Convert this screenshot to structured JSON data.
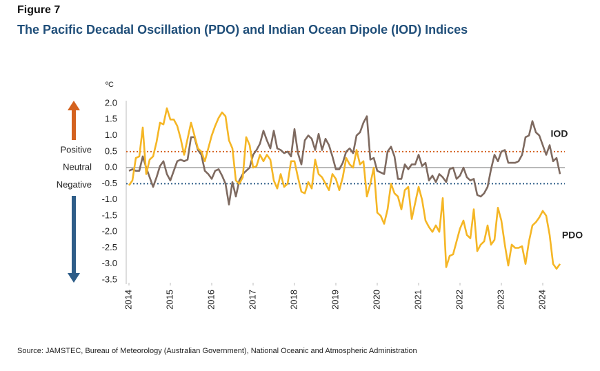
{
  "chart_data": {
    "type": "line",
    "figure_label": "Figure 7",
    "title": "The Pacific Decadal Oscillation (PDO) and Indian Ocean Dipole (IOD) Indices",
    "y_unit": "ºC",
    "source": "Source: JAMSTEC, Bureau of Meteorology (Australian Government), National Oceanic and Atmospheric Administration",
    "x": [
      2014,
      2014.083,
      2014.167,
      2014.25,
      2014.333,
      2014.417,
      2014.5,
      2014.583,
      2014.667,
      2014.75,
      2014.833,
      2014.917,
      2015,
      2015.083,
      2015.167,
      2015.25,
      2015.333,
      2015.417,
      2015.5,
      2015.583,
      2015.667,
      2015.75,
      2015.833,
      2015.917,
      2016,
      2016.083,
      2016.167,
      2016.25,
      2016.333,
      2016.417,
      2016.5,
      2016.583,
      2016.667,
      2016.75,
      2016.833,
      2016.917,
      2017,
      2017.083,
      2017.167,
      2017.25,
      2017.333,
      2017.417,
      2017.5,
      2017.583,
      2017.667,
      2017.75,
      2017.833,
      2017.917,
      2018,
      2018.083,
      2018.167,
      2018.25,
      2018.333,
      2018.417,
      2018.5,
      2018.583,
      2018.667,
      2018.75,
      2018.833,
      2018.917,
      2019,
      2019.083,
      2019.167,
      2019.25,
      2019.333,
      2019.417,
      2019.5,
      2019.583,
      2019.667,
      2019.75,
      2019.833,
      2019.917,
      2020,
      2020.083,
      2020.167,
      2020.25,
      2020.333,
      2020.417,
      2020.5,
      2020.583,
      2020.667,
      2020.75,
      2020.833,
      2020.917,
      2021,
      2021.083,
      2021.167,
      2021.25,
      2021.333,
      2021.417,
      2021.5,
      2021.583,
      2021.667,
      2021.75,
      2021.833,
      2021.917,
      2022,
      2022.083,
      2022.167,
      2022.25,
      2022.333,
      2022.417,
      2022.5,
      2022.583,
      2022.667,
      2022.75,
      2022.833,
      2022.917,
      2023,
      2023.083,
      2023.167,
      2023.25,
      2023.333,
      2023.417,
      2023.5,
      2023.583,
      2023.667,
      2023.75,
      2023.833,
      2023.917,
      2024,
      2024.083,
      2024.167,
      2024.25,
      2024.333,
      2024.417
    ],
    "series": [
      {
        "name": "IOD",
        "color": "#7e6a60",
        "values": [
          -0.1,
          -0.05,
          -0.1,
          -0.1,
          0.35,
          0,
          -0.3,
          -0.6,
          -0.3,
          0.05,
          0.2,
          -0.2,
          -0.4,
          -0.1,
          0.2,
          0.25,
          0.2,
          0.25,
          0.95,
          0.95,
          0.55,
          0.4,
          -0.1,
          -0.2,
          -0.35,
          -0.1,
          -0.05,
          -0.25,
          -0.5,
          -1.15,
          -0.45,
          -0.9,
          -0.4,
          -0.2,
          -0.1,
          0,
          0.4,
          0.55,
          0.75,
          1.15,
          0.85,
          0.6,
          1.15,
          0.6,
          0.55,
          0.45,
          0.5,
          0.35,
          1.2,
          0.45,
          0.1,
          0.85,
          1,
          0.9,
          0.55,
          1.05,
          0.55,
          0.9,
          0.7,
          0.35,
          -0.05,
          -0.05,
          0.15,
          0.5,
          0.6,
          0.45,
          1,
          1.1,
          1.4,
          1.6,
          0.25,
          0.3,
          -0.1,
          -0.15,
          -0.2,
          0.5,
          0.65,
          0.35,
          -0.35,
          -0.35,
          0.1,
          -0.05,
          0.1,
          0.1,
          0.4,
          0.05,
          0.15,
          -0.4,
          -0.25,
          -0.45,
          -0.2,
          -0.3,
          -0.45,
          -0.05,
          0,
          -0.35,
          -0.25,
          0,
          -0.3,
          -0.4,
          -0.35,
          -0.85,
          -0.9,
          -0.8,
          -0.6,
          -0.05,
          0.4,
          0.2,
          0.5,
          0.55,
          0.15,
          0.15,
          0.15,
          0.2,
          0.4,
          0.95,
          1,
          1.45,
          1.1,
          1,
          0.7,
          0.4,
          0.7,
          0.2,
          0.3,
          -0.2
        ]
      },
      {
        "name": "PDO",
        "color": "#f5b625",
        "values": [
          -0.55,
          -0.4,
          0.3,
          0.35,
          1.25,
          -0.2,
          0.25,
          0.35,
          0.8,
          1.4,
          1.35,
          1.85,
          1.5,
          1.5,
          1.3,
          0.9,
          0.4,
          0.9,
          1.4,
          1,
          0.6,
          0.5,
          0.2,
          0.6,
          1,
          1.3,
          1.55,
          1.72,
          1.6,
          0.85,
          0.6,
          -0.4,
          -0.5,
          -0.3,
          0.95,
          0.7,
          0,
          0.05,
          0.4,
          0.2,
          0.4,
          0.25,
          -0.4,
          -0.65,
          -0.2,
          -0.6,
          -0.5,
          0.2,
          0.2,
          -0.3,
          -0.75,
          -0.8,
          -0.45,
          -0.65,
          0.25,
          -0.2,
          -0.3,
          -0.5,
          -0.7,
          -0.2,
          -0.35,
          -0.7,
          -0.3,
          0.3,
          0.1,
          0,
          0.55,
          0.1,
          0.2,
          -0.9,
          -0.5,
          0,
          -1.4,
          -1.5,
          -1.75,
          -1.3,
          -0.5,
          -0.8,
          -0.9,
          -1.3,
          -0.7,
          -0.6,
          -1.6,
          -1.1,
          -0.6,
          -1,
          -1.65,
          -1.85,
          -2,
          -1.8,
          -2,
          -0.95,
          -3.1,
          -2.75,
          -2.7,
          -2.3,
          -1.9,
          -1.65,
          -2.1,
          -2.2,
          -1.3,
          -2.6,
          -2.4,
          -2.3,
          -1.8,
          -2.4,
          -2.25,
          -1.25,
          -1.65,
          -2.4,
          -3.05,
          -2.4,
          -2.5,
          -2.5,
          -2.45,
          -3,
          -2.3,
          -1.8,
          -1.7,
          -1.55,
          -1.35,
          -1.5,
          -2.1,
          -3,
          -3.15,
          -3
        ]
      }
    ],
    "thresholds": [
      {
        "label": "Positive",
        "value": 0.5,
        "color": "#d4621f"
      },
      {
        "label": "Neutral",
        "value": 0,
        "color": "#8a8a8a"
      },
      {
        "label": "Negative",
        "value": -0.5,
        "color": "#2e5d88"
      }
    ],
    "xlim": [
      2014,
      2024.5
    ],
    "xticks": [
      2014,
      2015,
      2016,
      2017,
      2018,
      2019,
      2020,
      2021,
      2022,
      2023,
      2024
    ],
    "ylim": [
      -3.5,
      2.0
    ],
    "yticks": [
      {
        "value": 2,
        "label": "2.0"
      },
      1.5,
      {
        "value": 1,
        "label": "1.0"
      },
      0.5,
      {
        "value": 0,
        "label": "0.0"
      },
      -0.5,
      {
        "value": -1,
        "label": "-1.0"
      },
      -1.5,
      {
        "value": -2,
        "label": "-2.0"
      },
      -2.5,
      {
        "value": -3,
        "label": "-3.0"
      },
      -3.5
    ]
  }
}
